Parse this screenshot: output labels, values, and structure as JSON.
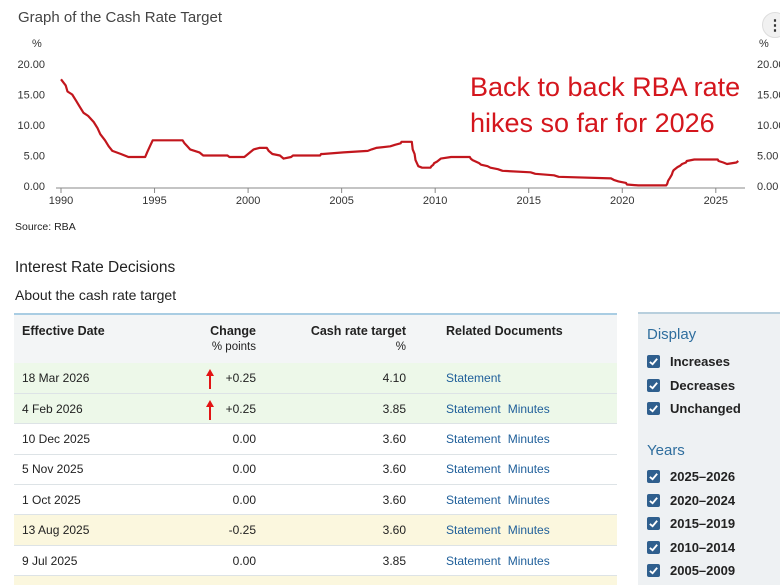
{
  "header": {
    "chart_title": "Graph of the Cash Rate Target",
    "more_icon": "more-vertical-icon",
    "more_glyph": "⋮",
    "source": "Source: RBA"
  },
  "chart_data": {
    "type": "line",
    "title": "Graph of the Cash Rate Target",
    "ylabel": "%",
    "xlabel": "",
    "ylim": [
      0,
      20
    ],
    "xlim": [
      1990,
      2026.4
    ],
    "y_ticks": [
      "20.00",
      "15.00",
      "10.00",
      "5.00",
      "0.00"
    ],
    "x_ticks": [
      "1990",
      "1995",
      "2000",
      "2005",
      "2010",
      "2015",
      "2020",
      "2025"
    ],
    "grid": false,
    "annotation": "Back to back RBA rate hikes so far for 2026",
    "line_color": "#c2161d",
    "series": [
      {
        "values": [
          [
            1990.0,
            17.5
          ],
          [
            1990.25,
            16.5
          ],
          [
            1990.35,
            15.5
          ],
          [
            1990.6,
            15.0
          ],
          [
            1990.8,
            14.0
          ],
          [
            1991.0,
            13.0
          ],
          [
            1991.2,
            12.0
          ],
          [
            1991.45,
            11.5
          ],
          [
            1991.75,
            10.5
          ],
          [
            1991.95,
            9.5
          ],
          [
            1992.1,
            8.5
          ],
          [
            1992.35,
            7.5
          ],
          [
            1992.55,
            6.5
          ],
          [
            1992.75,
            5.75
          ],
          [
            1993.2,
            5.25
          ],
          [
            1993.6,
            4.75
          ],
          [
            1994.5,
            4.75
          ],
          [
            1994.6,
            5.5
          ],
          [
            1994.75,
            6.5
          ],
          [
            1994.9,
            7.5
          ],
          [
            1996.5,
            7.5
          ],
          [
            1996.6,
            7.0
          ],
          [
            1996.75,
            6.5
          ],
          [
            1996.9,
            6.0
          ],
          [
            1997.4,
            5.5
          ],
          [
            1997.6,
            5.0
          ],
          [
            1998.9,
            5.0
          ],
          [
            1999.0,
            4.75
          ],
          [
            1999.8,
            4.75
          ],
          [
            1999.9,
            5.0
          ],
          [
            2000.1,
            5.5
          ],
          [
            2000.3,
            6.0
          ],
          [
            2000.6,
            6.25
          ],
          [
            2001.0,
            6.25
          ],
          [
            2001.1,
            5.75
          ],
          [
            2001.3,
            5.25
          ],
          [
            2001.7,
            5.0
          ],
          [
            2001.9,
            4.5
          ],
          [
            2002.3,
            4.75
          ],
          [
            2002.4,
            5.0
          ],
          [
            2003.85,
            5.0
          ],
          [
            2003.9,
            5.25
          ],
          [
            2004.0,
            5.25
          ],
          [
            2005.1,
            5.5
          ],
          [
            2006.4,
            5.75
          ],
          [
            2006.6,
            6.0
          ],
          [
            2006.85,
            6.25
          ],
          [
            2007.6,
            6.5
          ],
          [
            2007.85,
            6.75
          ],
          [
            2008.15,
            7.0
          ],
          [
            2008.2,
            7.25
          ],
          [
            2008.75,
            7.25
          ],
          [
            2008.8,
            6.0
          ],
          [
            2008.9,
            5.25
          ],
          [
            2008.95,
            4.25
          ],
          [
            2009.1,
            3.25
          ],
          [
            2009.3,
            3.0
          ],
          [
            2009.75,
            3.0
          ],
          [
            2009.8,
            3.25
          ],
          [
            2009.9,
            3.5
          ],
          [
            2009.95,
            3.75
          ],
          [
            2010.1,
            4.0
          ],
          [
            2010.3,
            4.5
          ],
          [
            2010.85,
            4.75
          ],
          [
            2011.85,
            4.75
          ],
          [
            2011.9,
            4.5
          ],
          [
            2012.0,
            4.25
          ],
          [
            2012.35,
            3.75
          ],
          [
            2012.45,
            3.5
          ],
          [
            2012.8,
            3.25
          ],
          [
            2012.95,
            3.0
          ],
          [
            2013.35,
            2.75
          ],
          [
            2013.6,
            2.5
          ],
          [
            2015.1,
            2.25
          ],
          [
            2015.35,
            2.0
          ],
          [
            2016.35,
            1.75
          ],
          [
            2016.6,
            1.5
          ],
          [
            2019.4,
            1.25
          ],
          [
            2019.55,
            1.0
          ],
          [
            2019.8,
            0.75
          ],
          [
            2020.2,
            0.5
          ],
          [
            2020.25,
            0.25
          ],
          [
            2020.85,
            0.1
          ],
          [
            2022.35,
            0.1
          ],
          [
            2022.4,
            0.35
          ],
          [
            2022.45,
            0.85
          ],
          [
            2022.55,
            1.35
          ],
          [
            2022.65,
            1.85
          ],
          [
            2022.7,
            2.35
          ],
          [
            2022.75,
            2.6
          ],
          [
            2022.85,
            2.85
          ],
          [
            2022.95,
            3.1
          ],
          [
            2023.1,
            3.35
          ],
          [
            2023.2,
            3.6
          ],
          [
            2023.4,
            3.85
          ],
          [
            2023.45,
            4.1
          ],
          [
            2023.85,
            4.35
          ],
          [
            2025.1,
            4.35
          ],
          [
            2025.15,
            4.1
          ],
          [
            2025.4,
            3.85
          ],
          [
            2025.6,
            3.6
          ],
          [
            2026.1,
            3.85
          ],
          [
            2026.2,
            4.1
          ]
        ]
      }
    ]
  },
  "section": {
    "title": "Interest Rate Decisions",
    "subtitle": "About the cash rate target"
  },
  "table": {
    "headers": {
      "date": "Effective Date",
      "change": "Change",
      "change_sub": "% points",
      "rate": "Cash rate target",
      "rate_sub": "%",
      "docs": "Related Documents"
    },
    "rows": [
      {
        "date": "18 Mar 2026",
        "change": "+0.25",
        "rate": "4.10",
        "statement": "Statement",
        "minutes": "",
        "kind": "increase",
        "arrow": true
      },
      {
        "date": "4 Feb 2026",
        "change": "+0.25",
        "rate": "3.85",
        "statement": "Statement",
        "minutes": "Minutes",
        "kind": "increase",
        "arrow": true
      },
      {
        "date": "10 Dec 2025",
        "change": "0.00",
        "rate": "3.60",
        "statement": "Statement",
        "minutes": "Minutes",
        "kind": "unchanged",
        "arrow": false
      },
      {
        "date": "5 Nov 2025",
        "change": "0.00",
        "rate": "3.60",
        "statement": "Statement",
        "minutes": "Minutes",
        "kind": "unchanged",
        "arrow": false
      },
      {
        "date": "1 Oct 2025",
        "change": "0.00",
        "rate": "3.60",
        "statement": "Statement",
        "minutes": "Minutes",
        "kind": "unchanged",
        "arrow": false
      },
      {
        "date": "13 Aug 2025",
        "change": "-0.25",
        "rate": "3.60",
        "statement": "Statement",
        "minutes": "Minutes",
        "kind": "decrease",
        "arrow": false
      },
      {
        "date": "9 Jul 2025",
        "change": "0.00",
        "rate": "3.85",
        "statement": "Statement",
        "minutes": "Minutes",
        "kind": "unchanged",
        "arrow": false
      },
      {
        "date": "",
        "change": "",
        "rate": "",
        "statement": "",
        "minutes": "",
        "kind": "cut",
        "arrow": false
      }
    ]
  },
  "filters": {
    "display_heading": "Display",
    "display_options": [
      {
        "label": "Increases",
        "checked": true
      },
      {
        "label": "Decreases",
        "checked": true
      },
      {
        "label": "Unchanged",
        "checked": true
      }
    ],
    "years_heading": "Years",
    "year_options": [
      {
        "label": "2025–2026",
        "checked": true
      },
      {
        "label": "2020–2024",
        "checked": true
      },
      {
        "label": "2015–2019",
        "checked": true
      },
      {
        "label": "2010–2014",
        "checked": true
      },
      {
        "label": "2005–2009",
        "checked": true
      }
    ]
  },
  "colors": {
    "increase_row": "#edf8e9",
    "decrease_row": "#fbf7de",
    "link": "#1f5f9a",
    "checkbox": "#2f5f8e",
    "annotation": "#d4161d",
    "arrow": "#e21414"
  }
}
